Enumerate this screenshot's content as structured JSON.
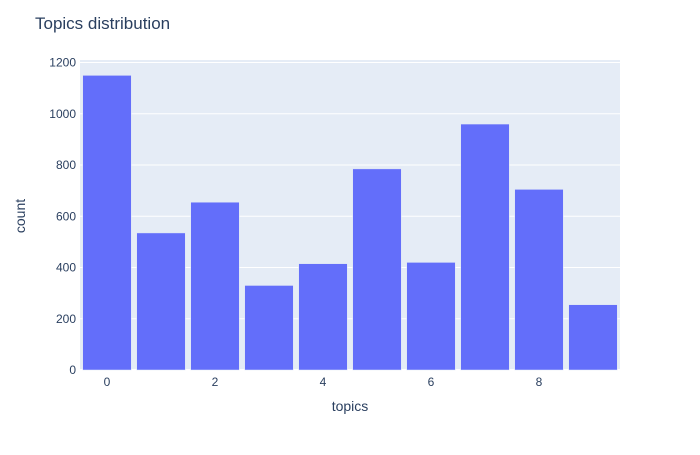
{
  "chart_data": {
    "type": "bar",
    "title": "Topics distribution",
    "xlabel": "topics",
    "ylabel": "count",
    "x": [
      0,
      1,
      2,
      3,
      4,
      5,
      6,
      7,
      8,
      9
    ],
    "values": [
      1150,
      535,
      655,
      330,
      415,
      785,
      420,
      960,
      705,
      255
    ],
    "xlim": [
      -0.5,
      9.5
    ],
    "ylim": [
      0,
      1210
    ],
    "x_ticks": [
      0,
      2,
      4,
      6,
      8
    ],
    "y_ticks": [
      0,
      200,
      400,
      600,
      800,
      1000,
      1200
    ],
    "grid": true,
    "colors": {
      "bar": "#636efa",
      "plot_background": "#e5ecf6",
      "grid": "#ffffff",
      "text": "#2a3f5f"
    }
  }
}
